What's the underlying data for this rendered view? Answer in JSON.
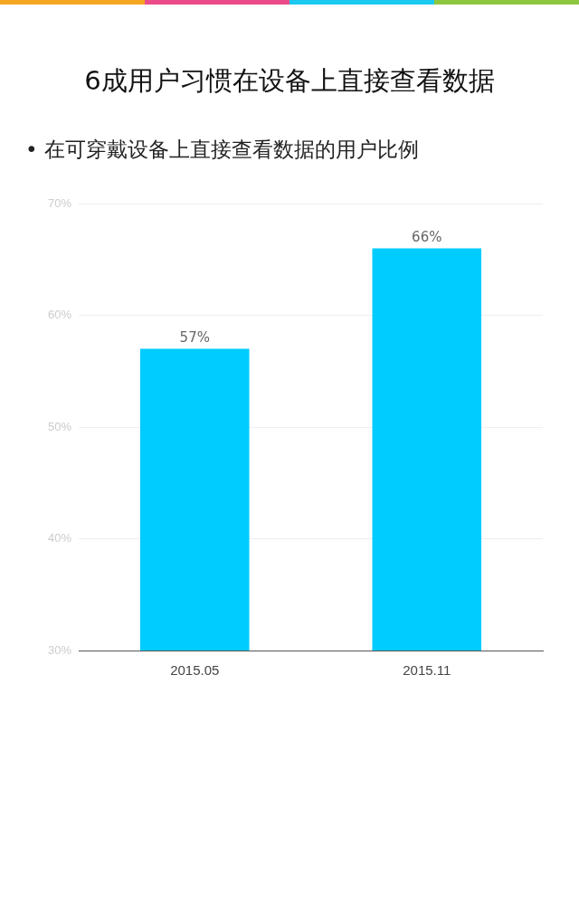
{
  "chart_data": {
    "type": "bar",
    "title": "6成用户习惯在设备上直接查看数据",
    "subtitle": "• 在可穿戴设备上直接查看数据的用户比例",
    "categories": [
      "2015.05",
      "2015.11"
    ],
    "values": [
      57,
      66
    ],
    "color": "#00ccff",
    "value_labels": [
      "57%",
      "66%"
    ],
    "ylim": [
      30,
      70
    ],
    "yticks": [
      {
        "value": 30,
        "label": "30%"
      },
      {
        "value": 40,
        "label": "40%"
      },
      {
        "value": 50,
        "label": "50%"
      },
      {
        "value": 60,
        "label": "60%"
      },
      {
        "value": 70,
        "label": "70%"
      }
    ],
    "grid": "y",
    "legend": false
  }
}
